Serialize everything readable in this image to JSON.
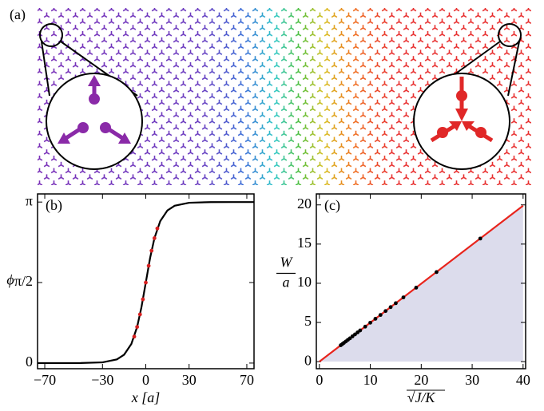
{
  "panel_a_label": "(a)",
  "chart_data": [
    {
      "type": "line",
      "label": "(b)",
      "xlabel": "x [a]",
      "ylabel": "ϕ",
      "xlim": [
        -75,
        75
      ],
      "ylim": [
        -0.11,
        3.3
      ],
      "xticks": [
        {
          "value": -70,
          "label": "−70"
        },
        {
          "value": -30,
          "label": "−30"
        },
        0,
        30,
        70
      ],
      "yticks": [
        0,
        {
          "value": 1.5708,
          "label": "π/2"
        },
        {
          "value": 3.1416,
          "label": "π"
        }
      ],
      "series": [
        {
          "mode": "line",
          "color": "#000000",
          "x": [
            -75,
            -60,
            -45,
            -30,
            -20,
            -15,
            -10,
            -6,
            -3,
            0,
            3,
            6,
            10,
            15,
            20,
            30,
            45,
            60,
            75
          ],
          "values": [
            0,
            0.0001,
            0.0011,
            0.0135,
            0.0714,
            0.1638,
            0.373,
            0.705,
            1.09,
            1.5708,
            2.052,
            2.437,
            2.769,
            2.978,
            3.07,
            3.128,
            3.1405,
            3.1415,
            3.1416
          ]
        },
        {
          "mode": "scatter",
          "color": "#d62020",
          "x": [
            -8,
            -6,
            -4,
            -2,
            0,
            2,
            4,
            6,
            8
          ],
          "values": [
            0.516,
            0.705,
            0.949,
            1.244,
            1.571,
            1.898,
            2.193,
            2.437,
            2.626
          ]
        }
      ]
    },
    {
      "type": "scatter",
      "label": "(c)",
      "xlabel": "√J/K",
      "ylabel": {
        "numerator": "W",
        "denominator": "a"
      },
      "xlim": [
        -0.6,
        40.5
      ],
      "ylim": [
        -0.9,
        21.4
      ],
      "xticks": [
        0,
        10,
        20,
        30,
        40
      ],
      "yticks": [
        0,
        5,
        10,
        15,
        20
      ],
      "series": [
        {
          "mode": "line",
          "color": "#e8241c",
          "fill": "#dcdcec",
          "x": [
            0,
            40
          ],
          "values": [
            0,
            19.9
          ]
        },
        {
          "mode": "scatter",
          "color": "#000000",
          "x": [
            4.2,
            4.5,
            4.8,
            5.2,
            5.6,
            6,
            6.5,
            7,
            7.5,
            8,
            9,
            10,
            11,
            12,
            13,
            14,
            15,
            16.5,
            19,
            23,
            31.6
          ],
          "values": [
            2.1,
            2.24,
            2.39,
            2.58,
            2.78,
            2.98,
            3.23,
            3.48,
            3.73,
            3.98,
            4.47,
            4.97,
            5.47,
            5.96,
            6.46,
            6.96,
            7.46,
            8.2,
            9.44,
            11.43,
            15.71
          ]
        }
      ]
    }
  ]
}
